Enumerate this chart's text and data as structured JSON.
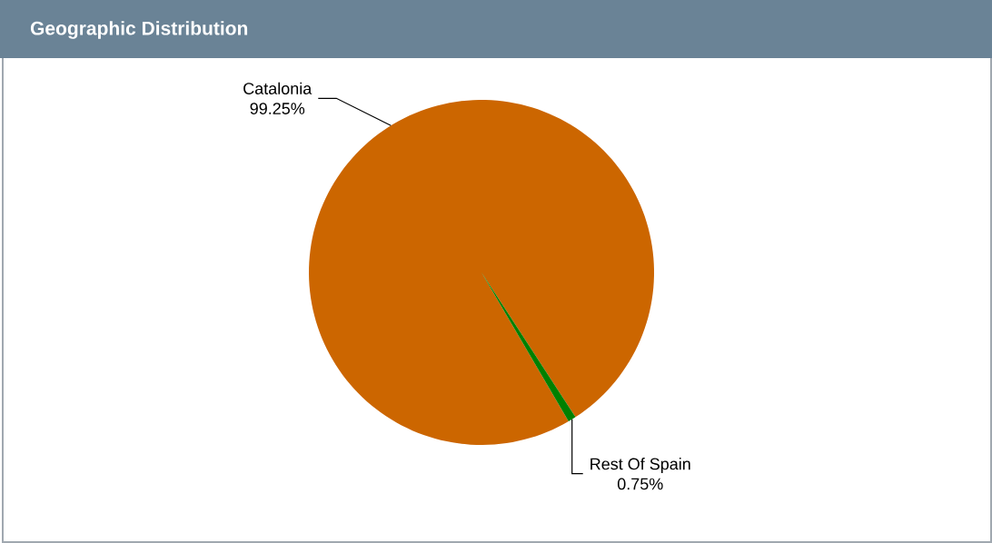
{
  "chart_data": {
    "type": "pie",
    "title": "Geographic Distribution",
    "categories": [
      "Catalonia",
      "Rest Of Spain"
    ],
    "values": [
      99.25,
      0.75
    ],
    "value_labels": [
      "99.25%",
      "0.75%"
    ],
    "colors": [
      "#cc6600",
      "#008000"
    ]
  }
}
